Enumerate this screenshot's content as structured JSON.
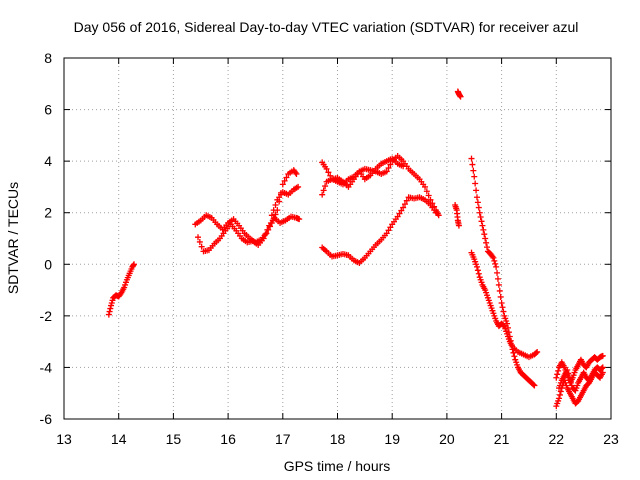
{
  "chart_data": {
    "type": "scatter",
    "title": "Day 056 of 2016, Sidereal Day-to-day VTEC variation (SDTVAR) for receiver azul",
    "xlabel": "GPS time / hours",
    "ylabel": "SDTVAR / TECUs",
    "xlim": [
      13,
      23
    ],
    "ylim": [
      -6,
      8
    ],
    "xticks": [
      "13",
      "14",
      "15",
      "16",
      "17",
      "18",
      "19",
      "20",
      "21",
      "22",
      "23"
    ],
    "yticks": [
      "-6",
      "-4",
      "-2",
      "0",
      "2",
      "4",
      "6",
      "8"
    ],
    "grid": true,
    "marker": "plus",
    "color": "#ff0000",
    "series": [
      {
        "name": "seg-13.8",
        "points": [
          [
            13.82,
            -1.95
          ],
          [
            13.86,
            -1.6
          ],
          [
            13.9,
            -1.3
          ],
          [
            13.95,
            -1.2
          ],
          [
            14.0,
            -1.25
          ],
          [
            14.05,
            -1.1
          ],
          [
            14.1,
            -0.9
          ],
          [
            14.15,
            -0.6
          ],
          [
            14.2,
            -0.35
          ],
          [
            14.25,
            -0.1
          ],
          [
            14.28,
            0.0
          ]
        ]
      },
      {
        "name": "seg-15.4-upper",
        "points": [
          [
            15.4,
            1.55
          ],
          [
            15.5,
            1.7
          ],
          [
            15.6,
            1.9
          ],
          [
            15.7,
            1.8
          ],
          [
            15.8,
            1.55
          ],
          [
            15.9,
            1.35
          ],
          [
            16.0,
            1.6
          ],
          [
            16.1,
            1.75
          ],
          [
            16.2,
            1.5
          ],
          [
            16.3,
            1.2
          ],
          [
            16.4,
            1.0
          ],
          [
            16.5,
            0.85
          ],
          [
            16.6,
            0.95
          ],
          [
            16.7,
            1.2
          ],
          [
            16.8,
            1.6
          ],
          [
            16.9,
            2.1
          ],
          [
            17.0,
            3.1
          ],
          [
            17.1,
            3.5
          ],
          [
            17.2,
            3.65
          ],
          [
            17.25,
            3.5
          ]
        ]
      },
      {
        "name": "seg-15.4-lower",
        "points": [
          [
            15.45,
            1.05
          ],
          [
            15.55,
            0.5
          ],
          [
            15.65,
            0.55
          ],
          [
            15.75,
            0.8
          ],
          [
            15.85,
            1.0
          ],
          [
            15.95,
            1.3
          ],
          [
            16.05,
            1.55
          ],
          [
            16.15,
            1.3
          ],
          [
            16.25,
            1.0
          ],
          [
            16.35,
            0.85
          ],
          [
            16.45,
            0.9
          ],
          [
            16.55,
            0.75
          ],
          [
            16.65,
            1.0
          ],
          [
            16.75,
            1.5
          ],
          [
            16.85,
            1.8
          ],
          [
            16.95,
            1.6
          ],
          [
            17.05,
            1.7
          ],
          [
            17.15,
            1.85
          ],
          [
            17.25,
            1.8
          ],
          [
            17.3,
            1.75
          ]
        ]
      },
      {
        "name": "seg-16.8-rise",
        "points": [
          [
            16.8,
            1.9
          ],
          [
            16.9,
            2.5
          ],
          [
            17.0,
            2.8
          ],
          [
            17.1,
            2.7
          ],
          [
            17.2,
            2.9
          ],
          [
            17.28,
            3.0
          ]
        ]
      },
      {
        "name": "seg-17.7-upper",
        "points": [
          [
            17.72,
            3.95
          ],
          [
            17.8,
            3.7
          ],
          [
            17.9,
            3.3
          ],
          [
            18.0,
            3.2
          ],
          [
            18.1,
            3.1
          ],
          [
            18.2,
            3.3
          ],
          [
            18.3,
            3.4
          ],
          [
            18.4,
            3.6
          ],
          [
            18.5,
            3.7
          ],
          [
            18.6,
            3.65
          ],
          [
            18.7,
            3.6
          ],
          [
            18.8,
            3.5
          ],
          [
            18.9,
            3.6
          ],
          [
            19.0,
            4.0
          ],
          [
            19.1,
            4.2
          ],
          [
            19.2,
            4.0
          ],
          [
            19.3,
            3.7
          ],
          [
            19.4,
            3.5
          ],
          [
            19.5,
            3.3
          ],
          [
            19.6,
            3.0
          ],
          [
            19.7,
            2.5
          ],
          [
            19.8,
            2.1
          ],
          [
            19.85,
            1.9
          ]
        ]
      },
      {
        "name": "seg-17.7-mid",
        "points": [
          [
            17.72,
            2.7
          ],
          [
            17.8,
            3.2
          ],
          [
            17.9,
            3.3
          ],
          [
            18.0,
            3.35
          ],
          [
            18.1,
            3.2
          ],
          [
            18.2,
            3.0
          ],
          [
            18.3,
            3.3
          ],
          [
            18.4,
            3.6
          ],
          [
            18.5,
            3.3
          ],
          [
            18.6,
            3.45
          ],
          [
            18.7,
            3.7
          ],
          [
            18.8,
            3.9
          ],
          [
            18.9,
            4.0
          ],
          [
            19.0,
            4.1
          ],
          [
            19.1,
            3.9
          ],
          [
            19.2,
            3.8
          ]
        ]
      },
      {
        "name": "seg-17.7-lower",
        "points": [
          [
            17.72,
            0.65
          ],
          [
            17.8,
            0.5
          ],
          [
            17.9,
            0.3
          ],
          [
            18.0,
            0.35
          ],
          [
            18.1,
            0.4
          ],
          [
            18.2,
            0.35
          ],
          [
            18.3,
            0.15
          ],
          [
            18.4,
            0.05
          ],
          [
            18.5,
            0.25
          ],
          [
            18.6,
            0.5
          ],
          [
            18.7,
            0.75
          ],
          [
            18.8,
            0.95
          ],
          [
            18.9,
            1.2
          ],
          [
            19.0,
            1.55
          ],
          [
            19.1,
            1.85
          ],
          [
            19.2,
            2.2
          ],
          [
            19.3,
            2.6
          ],
          [
            19.4,
            2.55
          ],
          [
            19.5,
            2.6
          ],
          [
            19.6,
            2.5
          ],
          [
            19.7,
            2.3
          ],
          [
            19.8,
            2.0
          ]
        ]
      },
      {
        "name": "seg-20.15",
        "points": [
          [
            20.15,
            2.3
          ],
          [
            20.18,
            2.1
          ],
          [
            20.2,
            1.7
          ],
          [
            20.22,
            1.5
          ]
        ]
      },
      {
        "name": "seg-20.2-high",
        "points": [
          [
            20.2,
            6.7
          ],
          [
            20.22,
            6.6
          ],
          [
            20.25,
            6.5
          ]
        ]
      },
      {
        "name": "seg-20.45-A",
        "points": [
          [
            20.45,
            4.1
          ],
          [
            20.5,
            3.4
          ],
          [
            20.55,
            2.6
          ],
          [
            20.6,
            2.0
          ],
          [
            20.65,
            1.5
          ],
          [
            20.7,
            1.0
          ],
          [
            20.75,
            0.5
          ],
          [
            20.8,
            0.4
          ],
          [
            20.85,
            0.25
          ],
          [
            20.9,
            -0.1
          ],
          [
            20.95,
            -0.8
          ],
          [
            21.0,
            -1.5
          ],
          [
            21.05,
            -2.0
          ],
          [
            21.1,
            -2.3
          ],
          [
            21.15,
            -2.8
          ],
          [
            21.2,
            -3.3
          ],
          [
            21.25,
            -3.7
          ],
          [
            21.3,
            -4.0
          ],
          [
            21.35,
            -4.2
          ],
          [
            21.4,
            -4.3
          ],
          [
            21.45,
            -4.4
          ],
          [
            21.5,
            -4.5
          ],
          [
            21.55,
            -4.6
          ],
          [
            21.6,
            -4.7
          ]
        ]
      },
      {
        "name": "seg-20.45-B",
        "points": [
          [
            20.45,
            0.45
          ],
          [
            20.5,
            0.2
          ],
          [
            20.55,
            -0.1
          ],
          [
            20.6,
            -0.5
          ],
          [
            20.65,
            -0.8
          ],
          [
            20.7,
            -1.0
          ],
          [
            20.75,
            -1.3
          ],
          [
            20.8,
            -1.6
          ],
          [
            20.85,
            -1.9
          ],
          [
            20.9,
            -2.2
          ],
          [
            20.95,
            -2.4
          ],
          [
            21.0,
            -2.3
          ],
          [
            21.05,
            -2.4
          ],
          [
            21.1,
            -2.7
          ],
          [
            21.15,
            -3.0
          ],
          [
            21.2,
            -3.2
          ],
          [
            21.3,
            -3.4
          ],
          [
            21.4,
            -3.5
          ],
          [
            21.5,
            -3.6
          ],
          [
            21.6,
            -3.5
          ],
          [
            21.65,
            -3.4
          ]
        ]
      },
      {
        "name": "seg-22-A",
        "points": [
          [
            22.0,
            -4.4
          ],
          [
            22.05,
            -4.0
          ],
          [
            22.1,
            -3.8
          ],
          [
            22.15,
            -4.0
          ],
          [
            22.2,
            -4.3
          ],
          [
            22.25,
            -4.6
          ],
          [
            22.3,
            -4.4
          ],
          [
            22.35,
            -4.1
          ],
          [
            22.4,
            -3.9
          ],
          [
            22.45,
            -3.7
          ],
          [
            22.5,
            -3.9
          ],
          [
            22.55,
            -4.0
          ],
          [
            22.6,
            -3.8
          ],
          [
            22.65,
            -3.7
          ],
          [
            22.7,
            -3.6
          ],
          [
            22.75,
            -3.7
          ],
          [
            22.8,
            -3.6
          ],
          [
            22.85,
            -3.55
          ]
        ]
      },
      {
        "name": "seg-22-B",
        "points": [
          [
            22.0,
            -5.5
          ],
          [
            22.05,
            -5.2
          ],
          [
            22.1,
            -4.8
          ],
          [
            22.15,
            -4.5
          ],
          [
            22.2,
            -4.8
          ],
          [
            22.25,
            -5.0
          ],
          [
            22.3,
            -5.2
          ],
          [
            22.35,
            -5.4
          ],
          [
            22.4,
            -5.3
          ],
          [
            22.45,
            -5.1
          ],
          [
            22.5,
            -4.9
          ],
          [
            22.55,
            -4.7
          ],
          [
            22.6,
            -4.6
          ],
          [
            22.65,
            -4.4
          ],
          [
            22.7,
            -4.2
          ],
          [
            22.75,
            -4.3
          ],
          [
            22.8,
            -4.4
          ],
          [
            22.85,
            -4.2
          ]
        ]
      },
      {
        "name": "seg-22-C",
        "points": [
          [
            22.05,
            -4.8
          ],
          [
            22.1,
            -4.5
          ],
          [
            22.15,
            -4.3
          ],
          [
            22.2,
            -4.1
          ],
          [
            22.25,
            -4.5
          ],
          [
            22.3,
            -4.8
          ],
          [
            22.35,
            -4.9
          ],
          [
            22.4,
            -4.6
          ],
          [
            22.45,
            -4.4
          ],
          [
            22.5,
            -4.2
          ],
          [
            22.55,
            -4.4
          ],
          [
            22.6,
            -4.5
          ],
          [
            22.65,
            -4.3
          ],
          [
            22.7,
            -4.1
          ],
          [
            22.75,
            -4.0
          ],
          [
            22.8,
            -4.1
          ],
          [
            22.85,
            -4.0
          ]
        ]
      }
    ]
  }
}
